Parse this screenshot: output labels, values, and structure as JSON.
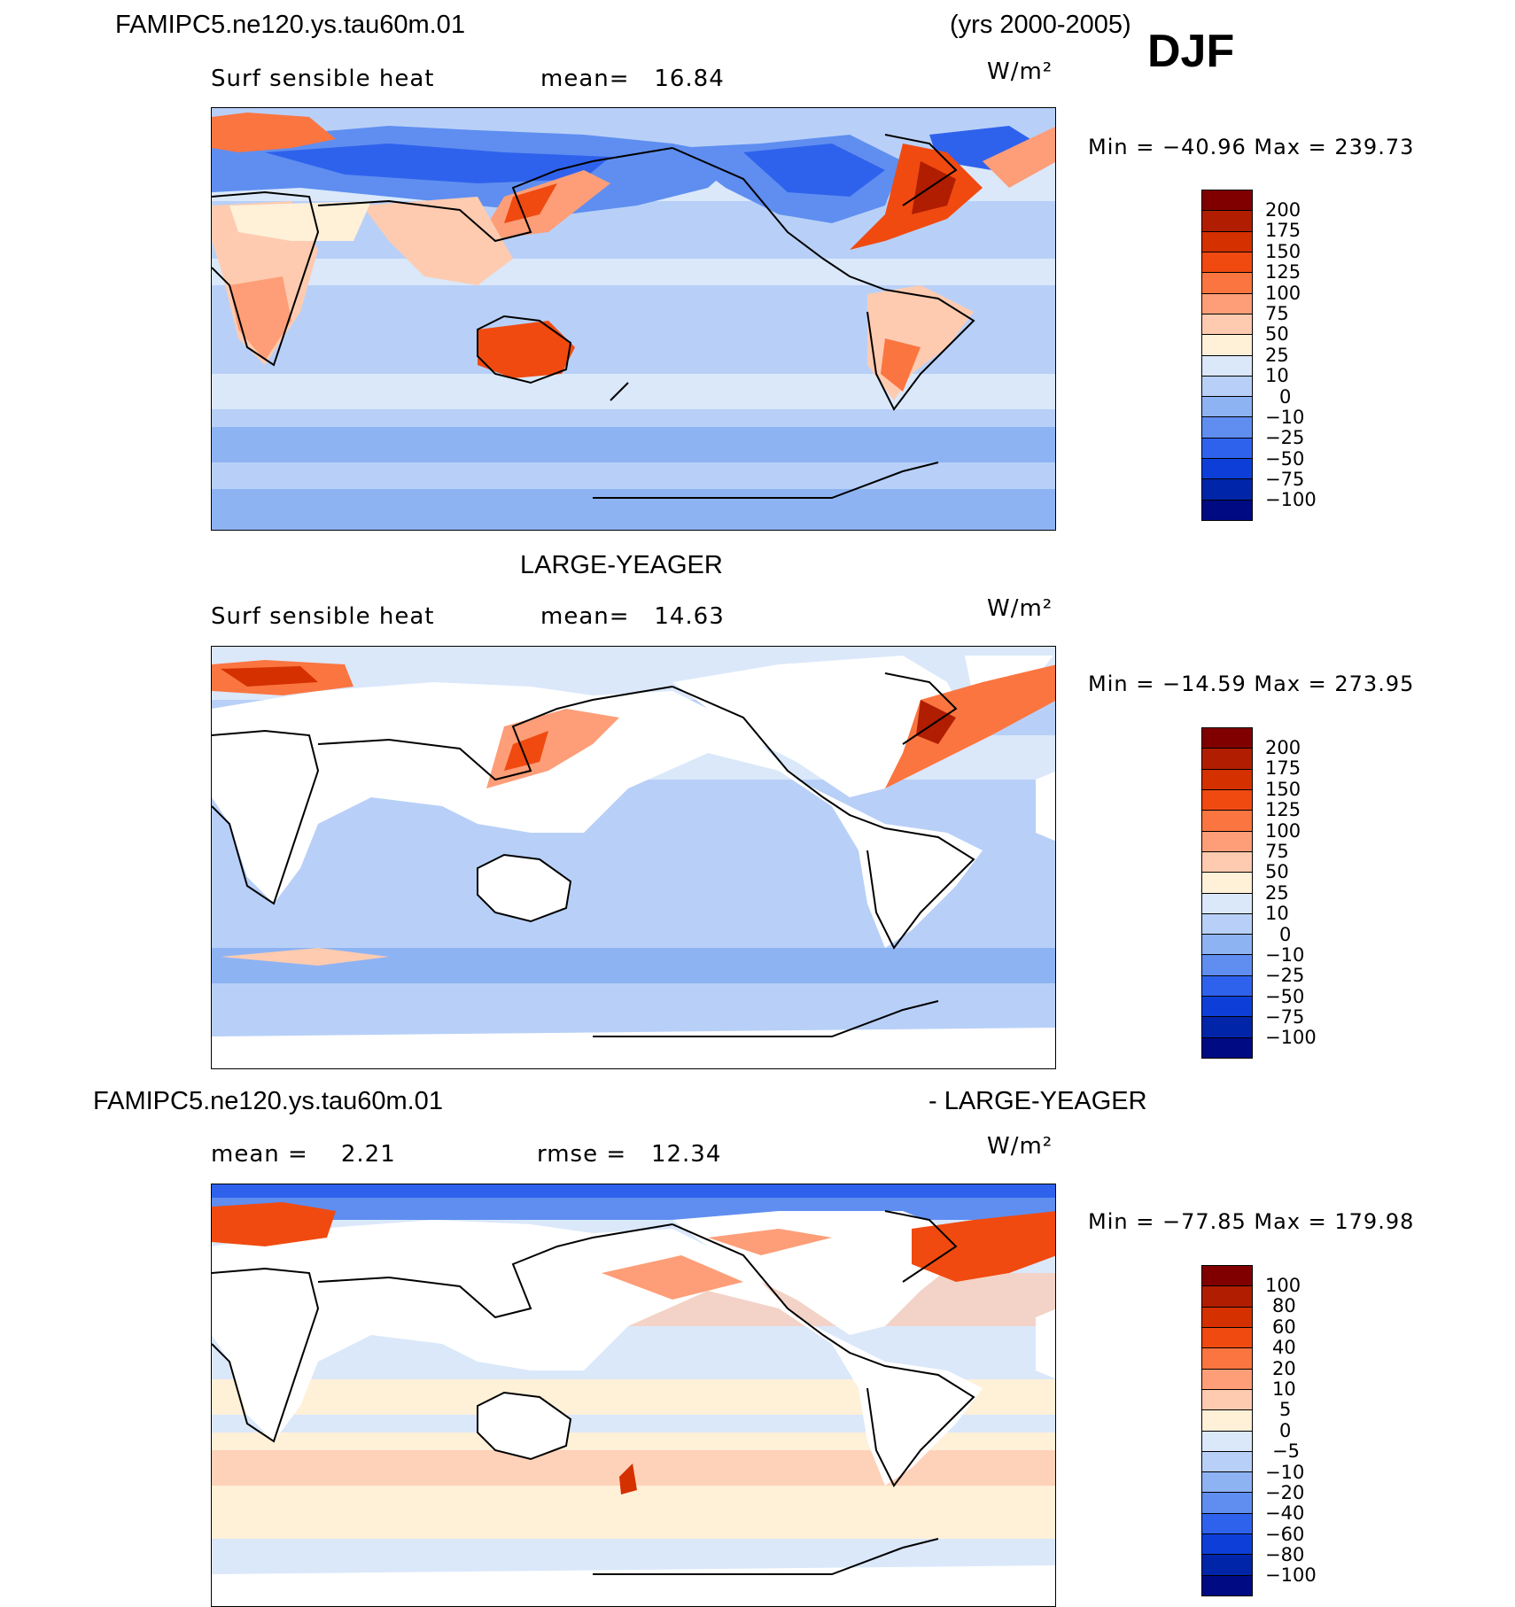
{
  "header": {
    "case_name": "FAMIPC5.ne120.ys.tau60m.01",
    "years": "(yrs 2000-2005)",
    "season": "DJF"
  },
  "panels": [
    {
      "id": "test",
      "title": "",
      "variable_label": "Surf sensible heat",
      "stat_text": "mean=   16.84",
      "units": "W/m²",
      "minmax_text": "Min = −40.96 Max = 239.73",
      "levels": [
        "200",
        "175",
        "150",
        "125",
        "100",
        "75",
        "50",
        "25",
        "10",
        "0",
        "−10",
        "−25",
        "−50",
        "−75",
        "−100"
      ],
      "land_filled": true
    },
    {
      "id": "obs",
      "title": "LARGE-YEAGER",
      "variable_label": "Surf sensible heat",
      "stat_text": "mean=   14.63",
      "units": "W/m²",
      "minmax_text": "Min = −14.59 Max = 273.95",
      "levels": [
        "200",
        "175",
        "150",
        "125",
        "100",
        "75",
        "50",
        "25",
        "10",
        "0",
        "−10",
        "−25",
        "−50",
        "−75",
        "−100"
      ],
      "land_filled": false
    },
    {
      "id": "diff",
      "title_left": "FAMIPC5.ne120.ys.tau60m.01",
      "title_right": "- LARGE-YEAGER",
      "mean_text": "mean =    2.21",
      "rmse_text": "rmse =   12.34",
      "units": "W/m²",
      "minmax_text": "Min = −77.85 Max = 179.98",
      "levels": [
        "100",
        "80",
        "60",
        "40",
        "20",
        "10",
        "5",
        "0",
        "−5",
        "−10",
        "−20",
        "−40",
        "−60",
        "−80",
        "−100"
      ],
      "land_filled": false
    }
  ],
  "colorbar_colors": [
    "#800000",
    "#b01d00",
    "#d53000",
    "#f04a10",
    "#fb7540",
    "#fd9e78",
    "#fecbb0",
    "#fff0d8",
    "#dae8fa",
    "#b8d0f8",
    "#8eb3f3",
    "#5f8ef0",
    "#2f62ec",
    "#0d3fd8",
    "#0025a8",
    "#000a82"
  ]
}
